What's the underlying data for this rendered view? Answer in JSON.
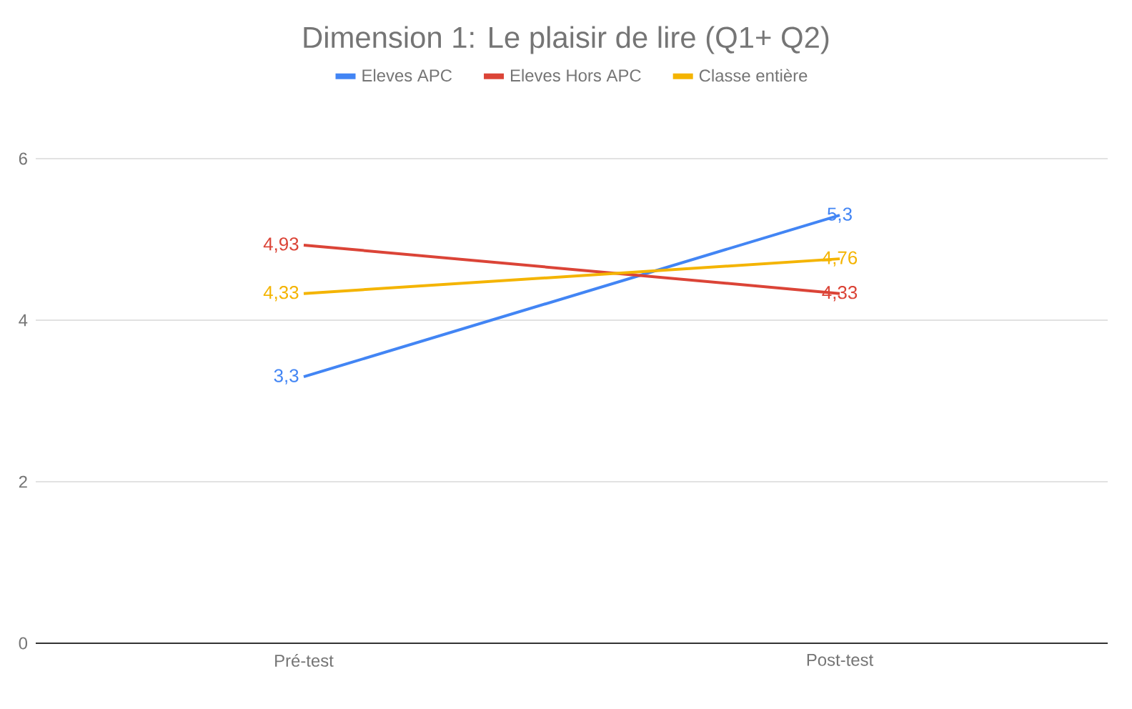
{
  "chart_data": {
    "type": "line",
    "title": "Dimension 1: Le plaisir de lire (Q1+ Q2)",
    "categories": [
      "Pré-test",
      "Post-test"
    ],
    "series": [
      {
        "name": "Eleves APC",
        "color": "#4285f4",
        "values": [
          3.3,
          5.3
        ],
        "value_labels": [
          "3,3",
          "5,3"
        ]
      },
      {
        "name": "Eleves Hors APC",
        "color": "#db4437",
        "values": [
          4.93,
          4.33
        ],
        "value_labels": [
          "4,93",
          "4,33"
        ]
      },
      {
        "name": "Classe entière",
        "color": "#f4b400",
        "values": [
          4.33,
          4.76
        ],
        "value_labels": [
          "4,33",
          "4,76"
        ]
      }
    ],
    "ylim": [
      0,
      6
    ],
    "yticks": [
      0,
      2,
      4,
      6
    ],
    "grid": "y",
    "legend": "top",
    "marker": "none",
    "line_style": "solid"
  }
}
